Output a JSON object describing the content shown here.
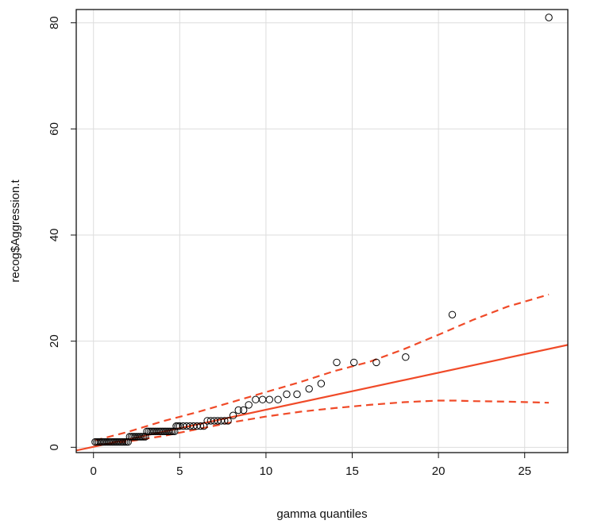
{
  "chart_data": {
    "type": "scatter",
    "title": "",
    "xlabel": "gamma quantiles",
    "ylabel": "recog$Aggression.t",
    "xlim": [
      -1,
      27.5
    ],
    "ylim": [
      -1,
      82.5
    ],
    "xticks": [
      0,
      5,
      10,
      15,
      20,
      25
    ],
    "yticks": [
      0,
      20,
      40,
      60,
      80
    ],
    "xtick_labels": [
      "0",
      "5",
      "10",
      "15",
      "20",
      "25"
    ],
    "ytick_labels": [
      "0",
      "20",
      "40",
      "60",
      "80"
    ],
    "grid": true,
    "legend": "none",
    "colors": {
      "points": "#000000",
      "reference_line": "#f04a28",
      "envelope": "#f04a28",
      "grid": "#dddddd"
    },
    "points": {
      "x": [
        0.1,
        0.2,
        0.3,
        0.4,
        0.5,
        0.6,
        0.7,
        0.8,
        0.9,
        1.0,
        1.1,
        1.2,
        1.3,
        1.4,
        1.5,
        1.6,
        1.7,
        1.8,
        1.9,
        2.0,
        2.1,
        2.2,
        2.3,
        2.4,
        2.5,
        2.6,
        2.7,
        2.8,
        2.9,
        3.0,
        3.1,
        3.2,
        3.3,
        3.4,
        3.5,
        3.6,
        3.7,
        3.8,
        3.9,
        4.0,
        4.1,
        4.2,
        4.3,
        4.4,
        4.5,
        4.6,
        4.7,
        4.8,
        4.9,
        5.0,
        5.2,
        5.4,
        5.6,
        5.8,
        6.0,
        6.2,
        6.4,
        6.6,
        6.8,
        7.0,
        7.2,
        7.4,
        7.6,
        7.8,
        8.1,
        8.4,
        8.7,
        9.0,
        9.4,
        9.8,
        10.2,
        10.7,
        11.2,
        11.8,
        12.5,
        13.2,
        14.1,
        15.1,
        16.4,
        18.1,
        20.8,
        26.4
      ],
      "y": [
        1,
        1,
        1,
        1,
        1,
        1,
        1,
        1,
        1,
        1,
        1,
        1,
        1,
        1,
        1,
        1,
        1,
        1,
        1,
        1,
        2,
        2,
        2,
        2,
        2,
        2,
        2,
        2,
        2,
        2,
        3,
        3,
        3,
        3,
        3,
        3,
        3,
        3,
        3,
        3,
        3,
        3,
        3,
        3,
        3,
        3,
        3,
        4,
        4,
        4,
        4,
        4,
        4,
        4,
        4,
        4,
        4,
        5,
        5,
        5,
        5,
        5,
        5,
        5,
        6,
        7,
        7,
        8,
        9,
        9,
        9,
        9,
        10,
        10,
        11,
        12,
        16,
        16,
        16,
        17,
        25,
        81
      ]
    },
    "reference_line": {
      "x": [
        -1,
        27.5
      ],
      "y": [
        -0.6,
        19.3
      ]
    },
    "envelope_upper": {
      "x": [
        0.1,
        2,
        4,
        6,
        8,
        10,
        12,
        14,
        16,
        18,
        20,
        22,
        24,
        26.4
      ],
      "y": [
        1.3,
        2.9,
        4.9,
        6.6,
        8.5,
        10.4,
        12.3,
        14.4,
        16.1,
        18.5,
        21.2,
        24.0,
        26.5,
        28.8
      ]
    },
    "envelope_lower": {
      "x": [
        0.1,
        2,
        4,
        6,
        8,
        10,
        12,
        14,
        16,
        18,
        20,
        21,
        22,
        24,
        26.4
      ],
      "y": [
        0.4,
        1.1,
        2.1,
        3.4,
        4.7,
        5.8,
        6.7,
        7.4,
        8.0,
        8.5,
        8.8,
        8.8,
        8.7,
        8.6,
        8.4
      ]
    }
  }
}
